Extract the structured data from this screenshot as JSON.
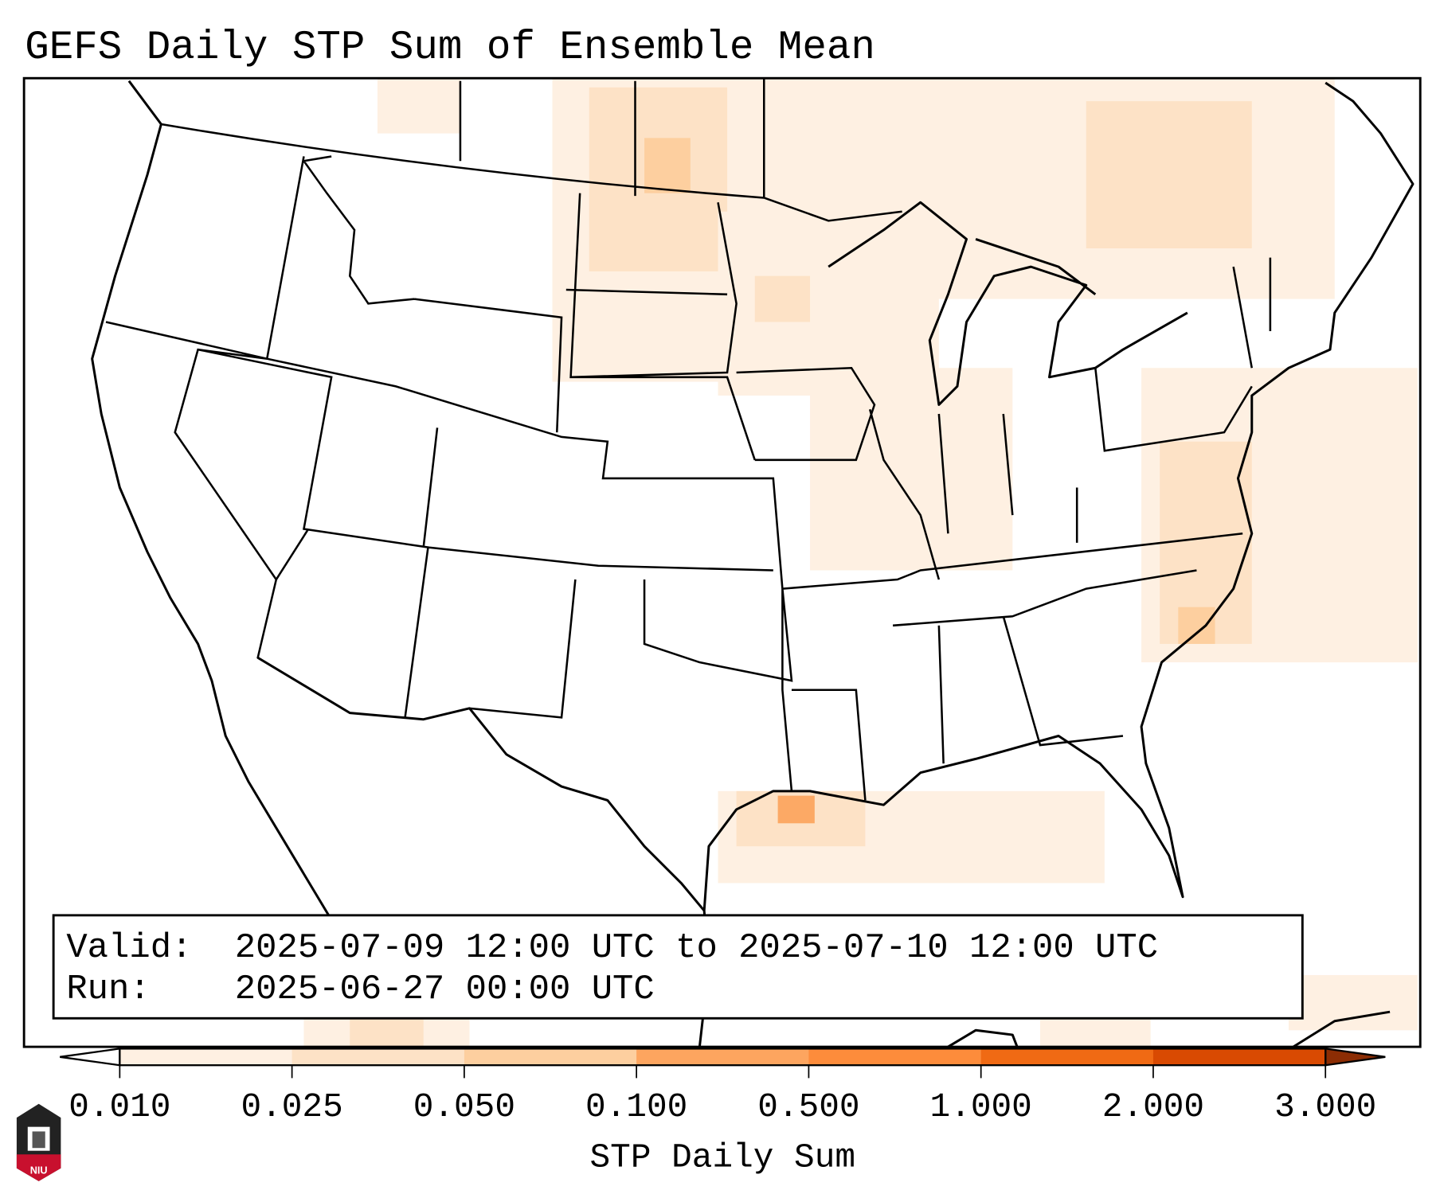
{
  "title": "GEFS Daily STP Sum of Ensemble Mean",
  "info_box": {
    "valid_label": "Valid:",
    "valid_value": "2025-07-09 12:00 UTC to 2025-07-10 12:00 UTC",
    "run_label": "Run:",
    "run_value": "2025-06-27 00:00 UTC"
  },
  "colorbar": {
    "label": "STP Daily Sum",
    "ticks": [
      "0.010",
      "0.025",
      "0.050",
      "0.100",
      "0.500",
      "1.000",
      "2.000",
      "3.000"
    ],
    "colors": [
      "#fef0e2",
      "#fde2c6",
      "#fdcf9f",
      "#fda55f",
      "#fd8c3b",
      "#f06a14",
      "#d94a02"
    ],
    "over_color": "#8c2d04",
    "under_color": "#ffffff"
  },
  "logo": {
    "text": "NIU"
  }
}
